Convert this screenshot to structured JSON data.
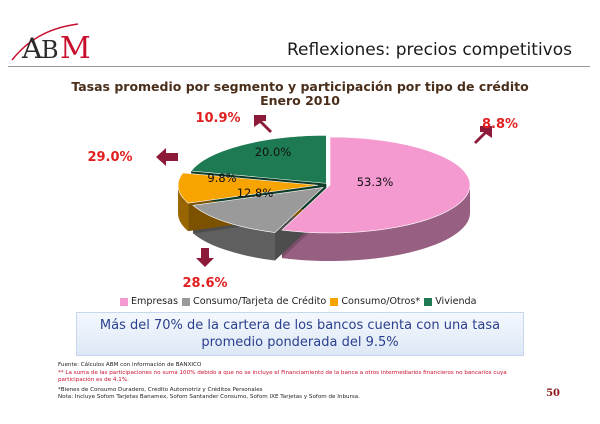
{
  "header": {
    "logo_text": "ABM",
    "title": "Reflexiones: precios competitivos"
  },
  "colors": {
    "empresas": "#f49ad0",
    "consumo_tarjeta": "#9a9a9a",
    "consumo_otros": "#f7a300",
    "vivienda": "#1e7a52",
    "rate_label": "#e02020",
    "arrow": "#8e1a3a",
    "callout_text": "#2b3f8e"
  },
  "chart_data": {
    "type": "pie",
    "title": "Tasas promedio por segmento y participación por tipo de crédito",
    "subtitle": "Enero 2010",
    "slices": [
      {
        "name": "Empresas",
        "share": 53.3,
        "share_label": "53.3%",
        "rate_label": "8.8%",
        "rate_arrow": "up"
      },
      {
        "name": "Consumo/Tarjeta de Crédito",
        "share": 12.8,
        "share_label": "12.8%",
        "rate_label": "28.6%",
        "rate_arrow": "down"
      },
      {
        "name": "Consumo/Otros*",
        "share": 9.8,
        "share_label": "9.8%",
        "rate_label": "29.0%",
        "rate_arrow": "left"
      },
      {
        "name": "Vivienda",
        "share": 20.0,
        "share_label": "20.0%",
        "rate_label": "10.9%",
        "rate_arrow": "up"
      }
    ],
    "legend_position": "bottom"
  },
  "callout": {
    "line1": "Más del 70% de la cartera de los bancos cuenta con una tasa",
    "line2": "promedio ponderada del 9.5%"
  },
  "footnotes": {
    "source": "Fuente:  Cálculos ABM con información de BANXICO",
    "note1_line1": "** La suma de las participaciones no suma 100% debido a que no se incluye el Financiamiento de la banca a otros intermediarios financieros no bancarios cuya",
    "note1_line2": "participación es de 4.1%.",
    "note2": "*Bienes de Consumo Duradero, Crédito Automotriz y Créditos Personales",
    "note3": "Nota: Incluye Sofom Tarjetas Banamex, Sofom Santander Consumo, Sofom IXE Tarjetas y Sofom de Inbursa."
  },
  "page_number": "50"
}
